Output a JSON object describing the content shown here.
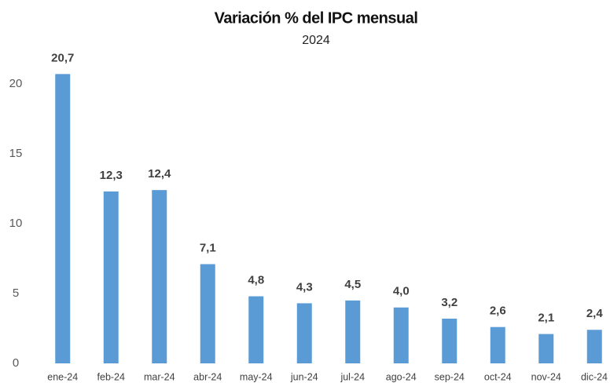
{
  "chart_data": {
    "type": "bar",
    "title": "Variación % del IPC mensual",
    "subtitle": "2024",
    "categories": [
      "ene-24",
      "feb-24",
      "mar-24",
      "abr-24",
      "may-24",
      "jun-24",
      "jul-24",
      "ago-24",
      "sep-24",
      "oct-24",
      "nov-24",
      "dic-24"
    ],
    "values": [
      20.7,
      12.3,
      12.4,
      7.1,
      4.8,
      4.3,
      4.5,
      4.0,
      3.2,
      2.6,
      2.1,
      2.4
    ],
    "value_labels": [
      "20,7",
      "12,3",
      "12,4",
      "7,1",
      "4,8",
      "4,3",
      "4,5",
      "4,0",
      "3,2",
      "2,6",
      "2,1",
      "2,4"
    ],
    "color": "#5b9bd5",
    "ylim": [
      0,
      21
    ],
    "yticks": [
      0,
      5,
      10,
      15,
      20
    ],
    "grid": false
  }
}
